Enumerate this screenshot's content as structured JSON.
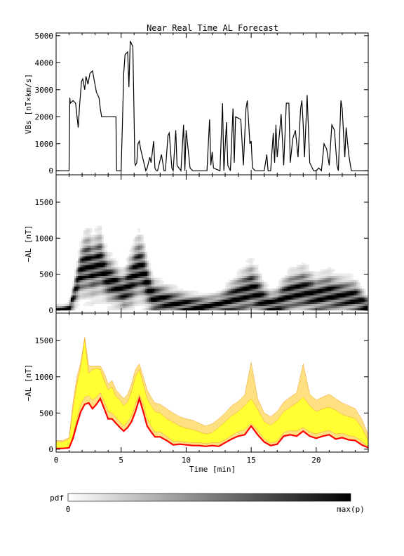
{
  "title": "Near Real Time AL Forecast",
  "colorbar": {
    "label": "pdf",
    "min_label": "0",
    "max_label": "max(p)",
    "colors": [
      "#ffffff",
      "#000000"
    ]
  },
  "chart_data": [
    {
      "type": "line",
      "ylabel": "VBs [nT×km/s]",
      "xlabel": "",
      "xlim": [
        0,
        24
      ],
      "ylim": [
        -150,
        5100
      ],
      "yticks": [
        0,
        1000,
        2000,
        3000,
        4000,
        5000
      ],
      "color": "#000000",
      "x": [
        0,
        1.0,
        1.05,
        1.1,
        1.3,
        1.5,
        1.7,
        1.8,
        1.95,
        2.05,
        2.2,
        2.3,
        2.45,
        2.6,
        2.8,
        2.95,
        3.1,
        3.3,
        3.4,
        3.5,
        3.6,
        3.75,
        3.8,
        4.6,
        4.65,
        4.75,
        5.0,
        5.1,
        5.2,
        5.3,
        5.5,
        5.6,
        5.7,
        5.8,
        5.9,
        6.0,
        6.05,
        6.1,
        6.2,
        6.3,
        6.4,
        6.5,
        6.7,
        6.9,
        7.0,
        7.2,
        7.3,
        7.5,
        7.6,
        7.7,
        7.8,
        7.9,
        8.1,
        8.3,
        8.4,
        8.6,
        8.7,
        8.9,
        9.0,
        9.2,
        9.3,
        9.6,
        9.8,
        9.9,
        10.0,
        10.3,
        10.5,
        11.0,
        11.6,
        11.8,
        11.9,
        12.0,
        12.1,
        12.6,
        12.8,
        12.9,
        13.1,
        13.2,
        13.4,
        13.6,
        13.7,
        13.8,
        14.2,
        14.4,
        14.6,
        14.7,
        14.9,
        15.0,
        15.1,
        15.3,
        15.5,
        16.0,
        16.2,
        16.3,
        16.5,
        16.7,
        16.8,
        16.9,
        17.0,
        17.2,
        17.3,
        17.5,
        17.7,
        17.9,
        18.0,
        18.2,
        18.4,
        18.6,
        18.8,
        18.9,
        19.0,
        19.1,
        19.3,
        19.5,
        19.8,
        20.0,
        20.2,
        20.4,
        20.6,
        20.8,
        21.0,
        21.2,
        21.4,
        21.6,
        21.7,
        21.9,
        22.0,
        22.2,
        22.3,
        22.5,
        22.7,
        22.8,
        23.0,
        23.2,
        23.4,
        24.0
      ],
      "y": [
        0,
        0,
        2700,
        2500,
        2600,
        2500,
        1600,
        2400,
        3300,
        3400,
        3000,
        3500,
        3200,
        3600,
        3700,
        3300,
        2900,
        2700,
        2300,
        2000,
        2000,
        2000,
        2000,
        2000,
        0,
        0,
        0,
        1800,
        3600,
        4300,
        4400,
        3100,
        4800,
        4700,
        4600,
        1800,
        300,
        200,
        300,
        1000,
        1100,
        800,
        400,
        0,
        100,
        500,
        300,
        1100,
        100,
        0,
        0,
        200,
        600,
        0,
        0,
        1300,
        1400,
        100,
        0,
        1500,
        200,
        0,
        1700,
        0,
        1500,
        100,
        0,
        0,
        0,
        1900,
        200,
        700,
        100,
        0,
        2500,
        0,
        1800,
        200,
        0,
        2300,
        300,
        2000,
        1900,
        200,
        2300,
        2600,
        1000,
        1100,
        100,
        0,
        0,
        0,
        600,
        0,
        0,
        1400,
        300,
        1700,
        500,
        1500,
        2100,
        200,
        2500,
        2500,
        300,
        1200,
        1500,
        500,
        2300,
        2600,
        1700,
        500,
        2800,
        300,
        0,
        0,
        100,
        0,
        1000,
        800,
        200,
        1700,
        1500,
        200,
        0,
        2600,
        2300,
        500,
        1600,
        600,
        0,
        0,
        0,
        0,
        0,
        0
      ]
    },
    {
      "type": "heatmap",
      "ylabel": "−AL [nT]",
      "xlabel": "",
      "xlim": [
        0,
        24
      ],
      "ylim": [
        -40,
        1880
      ],
      "yticks": [
        0,
        500,
        1000,
        1500
      ],
      "x": [
        0,
        0.5,
        1.0,
        1.3,
        1.6,
        1.9,
        2.2,
        2.5,
        2.8,
        3.1,
        3.4,
        3.7,
        4.0,
        4.3,
        4.6,
        4.9,
        5.2,
        5.5,
        5.8,
        6.1,
        6.4,
        6.7,
        7.0,
        7.3,
        7.6,
        8.0,
        8.5,
        9.0,
        9.5,
        10.0,
        10.5,
        11.0,
        11.5,
        12.0,
        12.5,
        13.0,
        13.5,
        14.0,
        14.5,
        15.0,
        15.5,
        16.0,
        16.5,
        17.0,
        17.5,
        18.0,
        18.5,
        19.0,
        19.5,
        20.0,
        20.5,
        21.0,
        21.5,
        22.0,
        22.5,
        23.0,
        23.5,
        24.0
      ],
      "center": [
        10,
        10,
        20,
        150,
        350,
        520,
        600,
        620,
        560,
        600,
        640,
        520,
        420,
        380,
        330,
        280,
        250,
        320,
        400,
        520,
        580,
        520,
        360,
        220,
        160,
        140,
        110,
        80,
        70,
        60,
        50,
        50,
        45,
        50,
        60,
        90,
        140,
        180,
        220,
        280,
        200,
        110,
        60,
        80,
        160,
        220,
        240,
        260,
        220,
        180,
        200,
        220,
        190,
        180,
        170,
        160,
        100,
        40
      ],
      "spread": [
        60,
        60,
        80,
        200,
        300,
        400,
        500,
        520,
        480,
        500,
        520,
        420,
        380,
        360,
        330,
        300,
        320,
        380,
        450,
        500,
        520,
        480,
        400,
        320,
        280,
        260,
        250,
        240,
        220,
        200,
        190,
        180,
        170,
        180,
        190,
        230,
        280,
        320,
        380,
        420,
        380,
        270,
        220,
        240,
        300,
        330,
        350,
        380,
        350,
        300,
        330,
        340,
        320,
        300,
        290,
        280,
        220,
        150
      ]
    },
    {
      "type": "area",
      "ylabel": "−AL [nT]",
      "xlabel": "Time [min]",
      "xlim": [
        0,
        24
      ],
      "ylim": [
        -40,
        1880
      ],
      "yticks": [
        0,
        500,
        1000,
        1500
      ],
      "xticks": [
        0,
        5,
        10,
        15,
        20
      ],
      "x": [
        0,
        0.5,
        1.0,
        1.3,
        1.6,
        1.9,
        2.2,
        2.5,
        2.8,
        3.1,
        3.4,
        3.7,
        4.0,
        4.3,
        4.6,
        4.9,
        5.2,
        5.5,
        5.8,
        6.1,
        6.4,
        6.7,
        7.0,
        7.3,
        7.6,
        8.0,
        8.5,
        9.0,
        9.5,
        10.0,
        10.5,
        11.0,
        11.5,
        12.0,
        12.5,
        13.0,
        13.5,
        14.0,
        14.5,
        15.0,
        15.5,
        16.0,
        16.5,
        17.0,
        17.5,
        18.0,
        18.5,
        19.0,
        19.5,
        20.0,
        20.5,
        21.0,
        21.5,
        22.0,
        22.5,
        23.0,
        23.5,
        24.0
      ],
      "series": [
        {
          "color": "#ff0000",
          "values": [
            10,
            10,
            20,
            150,
            350,
            520,
            620,
            640,
            560,
            620,
            700,
            560,
            420,
            420,
            360,
            300,
            250,
            300,
            380,
            520,
            700,
            520,
            320,
            240,
            170,
            170,
            120,
            60,
            70,
            60,
            50,
            50,
            40,
            50,
            40,
            90,
            140,
            180,
            200,
            320,
            200,
            100,
            50,
            70,
            180,
            200,
            180,
            250,
            180,
            150,
            180,
            200,
            140,
            160,
            130,
            120,
            60,
            20
          ]
        },
        {
          "color": "#ffff33",
          "lower": [
            10,
            10,
            20,
            200,
            420,
            620,
            720,
            740,
            680,
            720,
            780,
            660,
            520,
            500,
            440,
            380,
            320,
            380,
            460,
            620,
            760,
            620,
            420,
            320,
            240,
            240,
            180,
            110,
            110,
            100,
            90,
            90,
            80,
            90,
            90,
            130,
            190,
            240,
            270,
            360,
            260,
            140,
            90,
            110,
            230,
            260,
            250,
            300,
            240,
            210,
            240,
            260,
            210,
            220,
            190,
            170,
            110,
            40
          ],
          "upper": [
            100,
            100,
            140,
            560,
            900,
            1150,
            1520,
            1050,
            1100,
            1120,
            1100,
            950,
            820,
            860,
            730,
            680,
            600,
            650,
            800,
            1000,
            1100,
            900,
            700,
            600,
            520,
            500,
            420,
            370,
            320,
            290,
            270,
            240,
            210,
            230,
            300,
            380,
            460,
            520,
            600,
            700,
            550,
            380,
            330,
            400,
            520,
            580,
            640,
            720,
            600,
            520,
            560,
            580,
            540,
            480,
            450,
            420,
            300,
            120
          ]
        },
        {
          "color": "#ffe080",
          "lower": [
            10,
            10,
            20,
            150,
            350,
            520,
            620,
            640,
            560,
            620,
            700,
            560,
            420,
            420,
            360,
            300,
            250,
            300,
            380,
            520,
            700,
            520,
            320,
            240,
            170,
            170,
            120,
            60,
            70,
            60,
            50,
            50,
            40,
            50,
            40,
            90,
            140,
            180,
            200,
            320,
            200,
            100,
            50,
            70,
            180,
            200,
            180,
            250,
            180,
            150,
            180,
            200,
            140,
            160,
            130,
            120,
            60,
            20
          ],
          "upper": [
            120,
            120,
            160,
            650,
            1000,
            1200,
            1550,
            1150,
            1150,
            1150,
            1150,
            1050,
            900,
            950,
            820,
            760,
            700,
            760,
            900,
            1100,
            1180,
            1000,
            820,
            720,
            640,
            620,
            560,
            500,
            450,
            420,
            400,
            360,
            320,
            350,
            420,
            500,
            600,
            660,
            750,
            1200,
            700,
            500,
            450,
            520,
            650,
            720,
            780,
            1180,
            760,
            680,
            720,
            760,
            700,
            640,
            600,
            560,
            420,
            200
          ]
        }
      ]
    }
  ]
}
